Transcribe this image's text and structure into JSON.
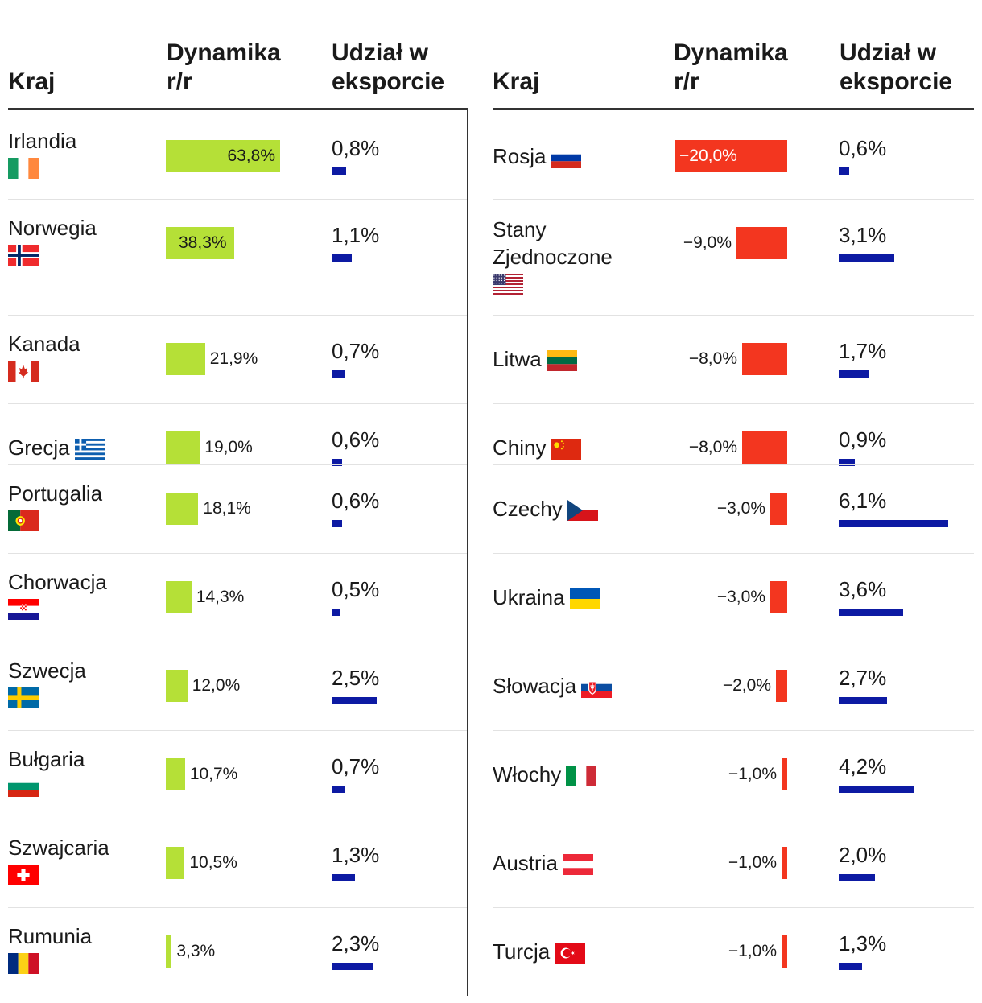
{
  "chart_data": {
    "type": "table",
    "columns": [
      "Kraj",
      "Dynamika r/r",
      "Udział w eksporcie"
    ],
    "column_headers": {
      "country": "Kraj",
      "dynamics": "Dynamika r/r",
      "share": "Udział w eksporcie"
    },
    "colors": {
      "positive": "#b5e037",
      "negative": "#f3361f",
      "share": "#0d1aa3"
    },
    "dynamics_scale_max": 63.8,
    "share_scale_max": 6.1,
    "left": [
      {
        "country": "Irlandia",
        "flag": "ireland-flag-icon",
        "dynamics": 63.8,
        "dynamics_label": "63,8%",
        "share": 0.8,
        "share_label": "0,8%"
      },
      {
        "country": "Norwegia",
        "flag": "norway-flag-icon",
        "dynamics": 38.3,
        "dynamics_label": "38,3%",
        "share": 1.1,
        "share_label": "1,1%"
      },
      {
        "country": "Kanada",
        "flag": "canada-flag-icon",
        "dynamics": 21.9,
        "dynamics_label": "21,9%",
        "share": 0.7,
        "share_label": "0,7%"
      },
      {
        "country": "Grecja",
        "flag": "greece-flag-icon",
        "dynamics": 19.0,
        "dynamics_label": "19,0%",
        "share": 0.6,
        "share_label": "0,6%"
      },
      {
        "country": "Portugalia",
        "flag": "portugal-flag-icon",
        "dynamics": 18.1,
        "dynamics_label": "18,1%",
        "share": 0.6,
        "share_label": "0,6%"
      },
      {
        "country": "Chorwacja",
        "flag": "croatia-flag-icon",
        "dynamics": 14.3,
        "dynamics_label": "14,3%",
        "share": 0.5,
        "share_label": "0,5%"
      },
      {
        "country": "Szwecja",
        "flag": "sweden-flag-icon",
        "dynamics": 12.0,
        "dynamics_label": "12,0%",
        "share": 2.5,
        "share_label": "2,5%"
      },
      {
        "country": "Bułgaria",
        "flag": "bulgaria-flag-icon",
        "dynamics": 10.7,
        "dynamics_label": "10,7%",
        "share": 0.7,
        "share_label": "0,7%"
      },
      {
        "country": "Szwajcaria",
        "flag": "switzerland-flag-icon",
        "dynamics": 10.5,
        "dynamics_label": "10,5%",
        "share": 1.3,
        "share_label": "1,3%"
      },
      {
        "country": "Rumunia",
        "flag": "romania-flag-icon",
        "dynamics": 3.3,
        "dynamics_label": "3,3%",
        "share": 2.3,
        "share_label": "2,3%"
      }
    ],
    "right": [
      {
        "country": "Rosja",
        "flag": "russia-flag-icon",
        "dynamics": -20.0,
        "dynamics_label": "−20,0%",
        "share": 0.6,
        "share_label": "0,6%"
      },
      {
        "country": "Stany Zjednoczone",
        "flag": "usa-flag-icon",
        "dynamics": -9.0,
        "dynamics_label": "−9,0%",
        "share": 3.1,
        "share_label": "3,1%"
      },
      {
        "country": "Litwa",
        "flag": "lithuania-flag-icon",
        "dynamics": -8.0,
        "dynamics_label": "−8,0%",
        "share": 1.7,
        "share_label": "1,7%"
      },
      {
        "country": "Chiny",
        "flag": "china-flag-icon",
        "dynamics": -8.0,
        "dynamics_label": "−8,0%",
        "share": 0.9,
        "share_label": "0,9%"
      },
      {
        "country": "Czechy",
        "flag": "czechia-flag-icon",
        "dynamics": -3.0,
        "dynamics_label": "−3,0%",
        "share": 6.1,
        "share_label": "6,1%"
      },
      {
        "country": "Ukraina",
        "flag": "ukraine-flag-icon",
        "dynamics": -3.0,
        "dynamics_label": "−3,0%",
        "share": 3.6,
        "share_label": "3,6%"
      },
      {
        "country": "Słowacja",
        "flag": "slovakia-flag-icon",
        "dynamics": -2.0,
        "dynamics_label": "−2,0%",
        "share": 2.7,
        "share_label": "2,7%"
      },
      {
        "country": "Włochy",
        "flag": "italy-flag-icon",
        "dynamics": -1.0,
        "dynamics_label": "−1,0%",
        "share": 4.2,
        "share_label": "4,2%"
      },
      {
        "country": "Austria",
        "flag": "austria-flag-icon",
        "dynamics": -1.0,
        "dynamics_label": "−1,0%",
        "share": 2.0,
        "share_label": "2,0%"
      },
      {
        "country": "Turcja",
        "flag": "turkey-flag-icon",
        "dynamics": -1.0,
        "dynamics_label": "−1,0%",
        "share": 1.3,
        "share_label": "1,3%"
      }
    ]
  }
}
